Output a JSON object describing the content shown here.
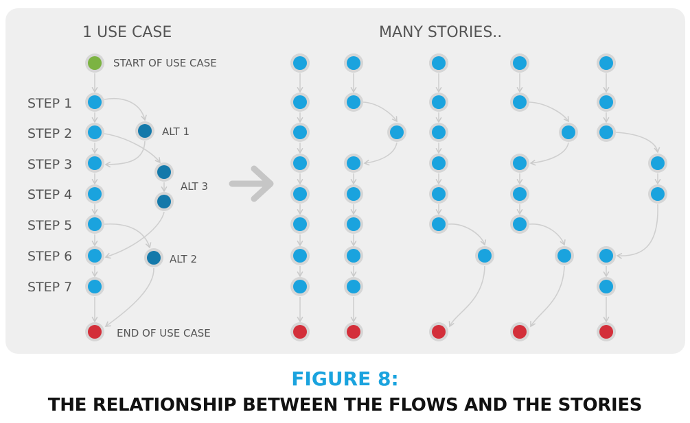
{
  "header": {
    "left_title": "1 USE CASE",
    "right_title": "MANY STORIES.."
  },
  "labels": {
    "start": "START OF USE CASE",
    "end": "END OF USE CASE",
    "steps": [
      "STEP 1",
      "STEP 2",
      "STEP 3",
      "STEP 4",
      "STEP 5",
      "STEP 6",
      "STEP 7"
    ],
    "alts": [
      "ALT 1",
      "ALT 3",
      "ALT 2"
    ]
  },
  "caption": {
    "figure": "FIGURE 8:",
    "title": "THE RELATIONSHIP BETWEEN THE FLOWS AND THE STORIES"
  },
  "colors": {
    "start": "#7cb342",
    "step": "#1aa3de",
    "alt": "#1479aa",
    "end": "#d32f3a",
    "ring": "#d6d6d6",
    "panel": "#efefef",
    "connector": "#cfcfcf"
  }
}
